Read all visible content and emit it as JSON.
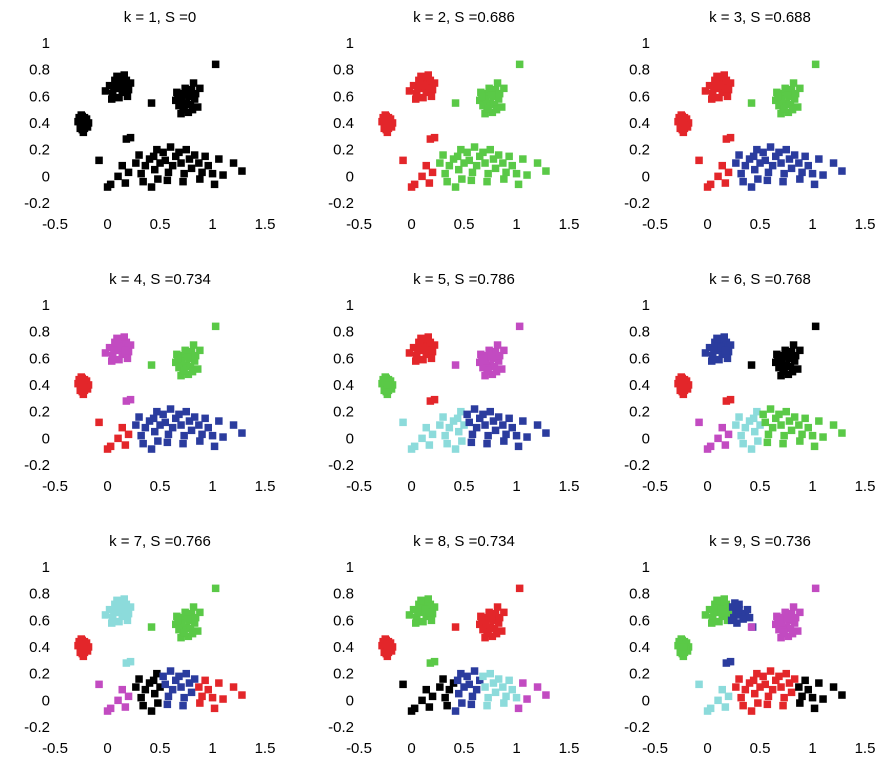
{
  "colors": {
    "black": "#000000",
    "red": "#e3262a",
    "green": "#5ac947",
    "blue": "#2b3c9e",
    "magenta": "#c24bc1",
    "cyan": "#8cdbdb"
  },
  "chart_data": [
    {
      "type": "scatter",
      "title": "k = 1,  S =0",
      "k": 1,
      "S": 0,
      "xlim": [
        -0.5,
        1.5
      ],
      "ylim": [
        -0.2,
        1
      ],
      "xticks": [
        "-0.5",
        "0",
        "0.5",
        "1",
        "1.5"
      ],
      "yticks": [
        "-0.2",
        "0",
        "0.2",
        "0.4",
        "0.6",
        "0.8",
        "1"
      ],
      "clusters": {
        "A": "black",
        "B": "black",
        "C": "black",
        "D": "black",
        "L1": "black",
        "L2": "black",
        "L3": "black",
        "L4": "black",
        "L5": "black",
        "L6": "black",
        "L7": "black",
        "Xa": "black",
        "Xb": "black"
      }
    },
    {
      "type": "scatter",
      "title": "k = 2,  S =0.686",
      "k": 2,
      "S": 0.686,
      "xlim": [
        -0.5,
        1.5
      ],
      "ylim": [
        -0.2,
        1
      ],
      "xticks": [
        "-0.5",
        "0",
        "0.5",
        "1",
        "1.5"
      ],
      "yticks": [
        "-0.2",
        "0",
        "0.2",
        "0.4",
        "0.6",
        "0.8",
        "1"
      ],
      "clusters": {
        "A": "red",
        "B": "red",
        "C": "green",
        "D": "red",
        "L1": "red",
        "L2": "green",
        "L3": "green",
        "L4": "green",
        "L5": "green",
        "L6": "green",
        "L7": "green",
        "Xa": "red",
        "Xb": "green"
      }
    },
    {
      "type": "scatter",
      "title": "k = 3,  S =0.688",
      "k": 3,
      "S": 0.688,
      "xlim": [
        -0.5,
        1.5
      ],
      "ylim": [
        -0.2,
        1
      ],
      "xticks": [
        "-0.5",
        "0",
        "0.5",
        "1",
        "1.5"
      ],
      "yticks": [
        "-0.2",
        "0",
        "0.2",
        "0.4",
        "0.6",
        "0.8",
        "1"
      ],
      "clusters": {
        "A": "red",
        "B": "red",
        "C": "green",
        "D": "red",
        "L1": "red",
        "L2": "blue",
        "L3": "blue",
        "L4": "blue",
        "L5": "blue",
        "L6": "blue",
        "L7": "blue",
        "Xa": "red",
        "Xb": "green"
      }
    },
    {
      "type": "scatter",
      "title": "k = 4,  S =0.734",
      "k": 4,
      "S": 0.734,
      "xlim": [
        -0.5,
        1.5
      ],
      "ylim": [
        -0.2,
        1
      ],
      "xticks": [
        "-0.5",
        "0",
        "0.5",
        "1",
        "1.5"
      ],
      "yticks": [
        "-0.2",
        "0",
        "0.2",
        "0.4",
        "0.6",
        "0.8",
        "1"
      ],
      "clusters": {
        "A": "red",
        "B": "magenta",
        "C": "green",
        "D": "red",
        "L1": "red",
        "L2": "blue",
        "L3": "blue",
        "L4": "blue",
        "L5": "blue",
        "L6": "blue",
        "L7": "blue",
        "Xa": "magenta",
        "Xb": "green"
      }
    },
    {
      "type": "scatter",
      "title": "k = 5,  S =0.786",
      "k": 5,
      "S": 0.786,
      "xlim": [
        -0.5,
        1.5
      ],
      "ylim": [
        -0.2,
        1
      ],
      "xticks": [
        "-0.5",
        "0",
        "0.5",
        "1",
        "1.5"
      ],
      "yticks": [
        "-0.2",
        "0",
        "0.2",
        "0.4",
        "0.6",
        "0.8",
        "1"
      ],
      "clusters": {
        "A": "green",
        "B": "red",
        "C": "magenta",
        "D": "cyan",
        "L1": "cyan",
        "L2": "cyan",
        "L3": "cyan",
        "L4": "blue",
        "L5": "blue",
        "L6": "blue",
        "L7": "blue",
        "Xa": "red",
        "Xb": "magenta"
      }
    },
    {
      "type": "scatter",
      "title": "k = 6,  S =0.768",
      "k": 6,
      "S": 0.768,
      "xlim": [
        -0.5,
        1.5
      ],
      "ylim": [
        -0.2,
        1
      ],
      "xticks": [
        "-0.5",
        "0",
        "0.5",
        "1",
        "1.5"
      ],
      "yticks": [
        "-0.2",
        "0",
        "0.2",
        "0.4",
        "0.6",
        "0.8",
        "1"
      ],
      "clusters": {
        "A": "red",
        "B": "blue",
        "C": "black",
        "D": "magenta",
        "L1": "magenta",
        "L2": "cyan",
        "L3": "cyan",
        "L4": "green",
        "L5": "green",
        "L6": "green",
        "L7": "green",
        "Xa": "red",
        "Xb": "black"
      }
    },
    {
      "type": "scatter",
      "title": "k = 7,  S =0.766",
      "k": 7,
      "S": 0.766,
      "xlim": [
        -0.5,
        1.5
      ],
      "ylim": [
        -0.2,
        1
      ],
      "xticks": [
        "-0.5",
        "0",
        "0.5",
        "1",
        "1.5"
      ],
      "yticks": [
        "-0.2",
        "0",
        "0.2",
        "0.4",
        "0.6",
        "0.8",
        "1"
      ],
      "clusters": {
        "A": "red",
        "B": "cyan",
        "C": "green",
        "D": "magenta",
        "L1": "magenta",
        "L2": "black",
        "L3": "black",
        "L4": "blue",
        "L5": "blue",
        "L6": "red",
        "L7": "red",
        "Xa": "cyan",
        "Xb": "green"
      }
    },
    {
      "type": "scatter",
      "title": "k = 8,  S =0.734",
      "k": 8,
      "S": 0.734,
      "xlim": [
        -0.5,
        1.5
      ],
      "ylim": [
        -0.2,
        1
      ],
      "xticks": [
        "-0.5",
        "0",
        "0.5",
        "1",
        "1.5"
      ],
      "yticks": [
        "-0.2",
        "0",
        "0.2",
        "0.4",
        "0.6",
        "0.8",
        "1"
      ],
      "clusters": {
        "A": "red",
        "B": "green",
        "C": "red",
        "D": "black",
        "L1": "black",
        "L2": "black",
        "L3": "blue",
        "L4": "blue",
        "L5": "cyan",
        "L6": "cyan",
        "L7": "magenta",
        "Xa": "green",
        "Xb": "red"
      }
    },
    {
      "type": "scatter",
      "title": "k = 9,  S =0.736",
      "k": 9,
      "S": 0.736,
      "xlim": [
        -0.5,
        1.5
      ],
      "ylim": [
        -0.2,
        1
      ],
      "xticks": [
        "-0.5",
        "0",
        "0.5",
        "1",
        "1.5"
      ],
      "yticks": [
        "-0.2",
        "0",
        "0.2",
        "0.4",
        "0.6",
        "0.8",
        "1"
      ],
      "clusters": {
        "A": "green",
        "B": "green",
        "B2": "blue",
        "C": "magenta",
        "D": "cyan",
        "L1": "cyan",
        "L2": "red",
        "L3": "red",
        "L4": "red",
        "L5": "red",
        "L6": "black",
        "L7": "black",
        "Xa": "blue",
        "Xb": "magenta"
      }
    }
  ],
  "points": {
    "A": [
      [
        -0.27,
        0.44
      ],
      [
        -0.25,
        0.41
      ],
      [
        -0.23,
        0.38
      ],
      [
        -0.24,
        0.45
      ],
      [
        -0.21,
        0.42
      ],
      [
        -0.26,
        0.39
      ],
      [
        -0.22,
        0.36
      ],
      [
        -0.2,
        0.4
      ],
      [
        -0.24,
        0.35
      ],
      [
        -0.28,
        0.41
      ],
      [
        -0.22,
        0.44
      ],
      [
        -0.19,
        0.37
      ],
      [
        -0.25,
        0.46
      ],
      [
        -0.23,
        0.33
      ],
      [
        -0.2,
        0.43
      ],
      [
        -0.26,
        0.36
      ],
      [
        -0.18,
        0.4
      ],
      [
        -0.24,
        0.42
      ],
      [
        -0.21,
        0.38
      ],
      [
        -0.23,
        0.4
      ]
    ],
    "B": [
      [
        -0.02,
        0.64
      ],
      [
        0.02,
        0.68
      ],
      [
        0.05,
        0.62
      ],
      [
        0.07,
        0.72
      ],
      [
        0.1,
        0.66
      ],
      [
        0.12,
        0.74
      ],
      [
        0.15,
        0.69
      ],
      [
        0.18,
        0.72
      ],
      [
        0.2,
        0.65
      ],
      [
        0.22,
        0.7
      ],
      [
        0.14,
        0.63
      ],
      [
        0.08,
        0.7
      ],
      [
        0.11,
        0.59
      ],
      [
        0.16,
        0.76
      ],
      [
        0.19,
        0.6
      ],
      [
        0.04,
        0.58
      ],
      [
        0.13,
        0.68
      ],
      [
        0.17,
        0.66
      ],
      [
        0.06,
        0.66
      ],
      [
        0.09,
        0.75
      ]
    ],
    "B2": [
      [
        0.24,
        0.7
      ],
      [
        0.27,
        0.66
      ],
      [
        0.25,
        0.62
      ],
      [
        0.3,
        0.72
      ],
      [
        0.28,
        0.58
      ],
      [
        0.32,
        0.64
      ],
      [
        0.23,
        0.6
      ],
      [
        0.3,
        0.68
      ],
      [
        0.36,
        0.65
      ],
      [
        0.4,
        0.62
      ],
      [
        0.26,
        0.73
      ],
      [
        0.34,
        0.61
      ],
      [
        0.38,
        0.68
      ],
      [
        0.43,
        0.55
      ]
    ],
    "C": [
      [
        0.65,
        0.57
      ],
      [
        0.7,
        0.62
      ],
      [
        0.75,
        0.55
      ],
      [
        0.78,
        0.6
      ],
      [
        0.72,
        0.5
      ],
      [
        0.8,
        0.65
      ],
      [
        0.83,
        0.58
      ],
      [
        0.68,
        0.53
      ],
      [
        0.74,
        0.66
      ],
      [
        0.86,
        0.52
      ],
      [
        0.77,
        0.48
      ],
      [
        0.66,
        0.63
      ],
      [
        0.71,
        0.58
      ],
      [
        0.79,
        0.54
      ],
      [
        0.84,
        0.62
      ],
      [
        0.76,
        0.61
      ],
      [
        0.7,
        0.47
      ],
      [
        0.88,
        0.66
      ],
      [
        0.73,
        0.51
      ],
      [
        0.81,
        0.5
      ],
      [
        0.67,
        0.6
      ],
      [
        0.82,
        0.7
      ]
    ],
    "D": [
      [
        -0.08,
        0.12
      ],
      [
        0.0,
        -0.08
      ],
      [
        0.03,
        -0.06
      ]
    ],
    "L1": [
      [
        0.1,
        0.0
      ],
      [
        0.14,
        0.08
      ],
      [
        0.2,
        0.03
      ],
      [
        0.17,
        -0.05
      ]
    ],
    "L2": [
      [
        0.27,
        0.1
      ],
      [
        0.32,
        0.02
      ],
      [
        0.3,
        0.16
      ],
      [
        0.36,
        0.08
      ],
      [
        0.34,
        -0.04
      ],
      [
        0.4,
        0.13
      ]
    ],
    "L3": [
      [
        0.45,
        0.05
      ],
      [
        0.48,
        -0.02
      ],
      [
        0.44,
        0.15
      ],
      [
        0.5,
        0.1
      ],
      [
        0.42,
        -0.08
      ],
      [
        0.47,
        0.2
      ]
    ],
    "L4": [
      [
        0.55,
        0.12
      ],
      [
        0.58,
        0.03
      ],
      [
        0.53,
        0.18
      ],
      [
        0.62,
        0.08
      ],
      [
        0.6,
        0.22
      ],
      [
        0.57,
        -0.03
      ],
      [
        0.65,
        0.15
      ]
    ],
    "L5": [
      [
        0.7,
        0.1
      ],
      [
        0.73,
        0.02
      ],
      [
        0.68,
        0.18
      ],
      [
        0.78,
        0.13
      ],
      [
        0.75,
        0.2
      ],
      [
        0.8,
        0.06
      ],
      [
        0.72,
        -0.04
      ],
      [
        0.83,
        0.16
      ]
    ],
    "L6": [
      [
        0.87,
        0.1
      ],
      [
        0.9,
        0.03
      ],
      [
        0.93,
        0.15
      ],
      [
        0.88,
        -0.02
      ],
      [
        0.96,
        0.08
      ],
      [
        1.0,
        0.02
      ]
    ],
    "L7": [
      [
        1.06,
        0.13
      ],
      [
        1.1,
        0.01
      ],
      [
        1.2,
        0.1
      ],
      [
        1.28,
        0.04
      ],
      [
        1.02,
        -0.06
      ]
    ],
    "Xa": [
      [
        0.18,
        0.28
      ],
      [
        0.22,
        0.29
      ]
    ],
    "Xb": [
      [
        0.42,
        0.55
      ],
      [
        1.03,
        0.84
      ]
    ]
  }
}
